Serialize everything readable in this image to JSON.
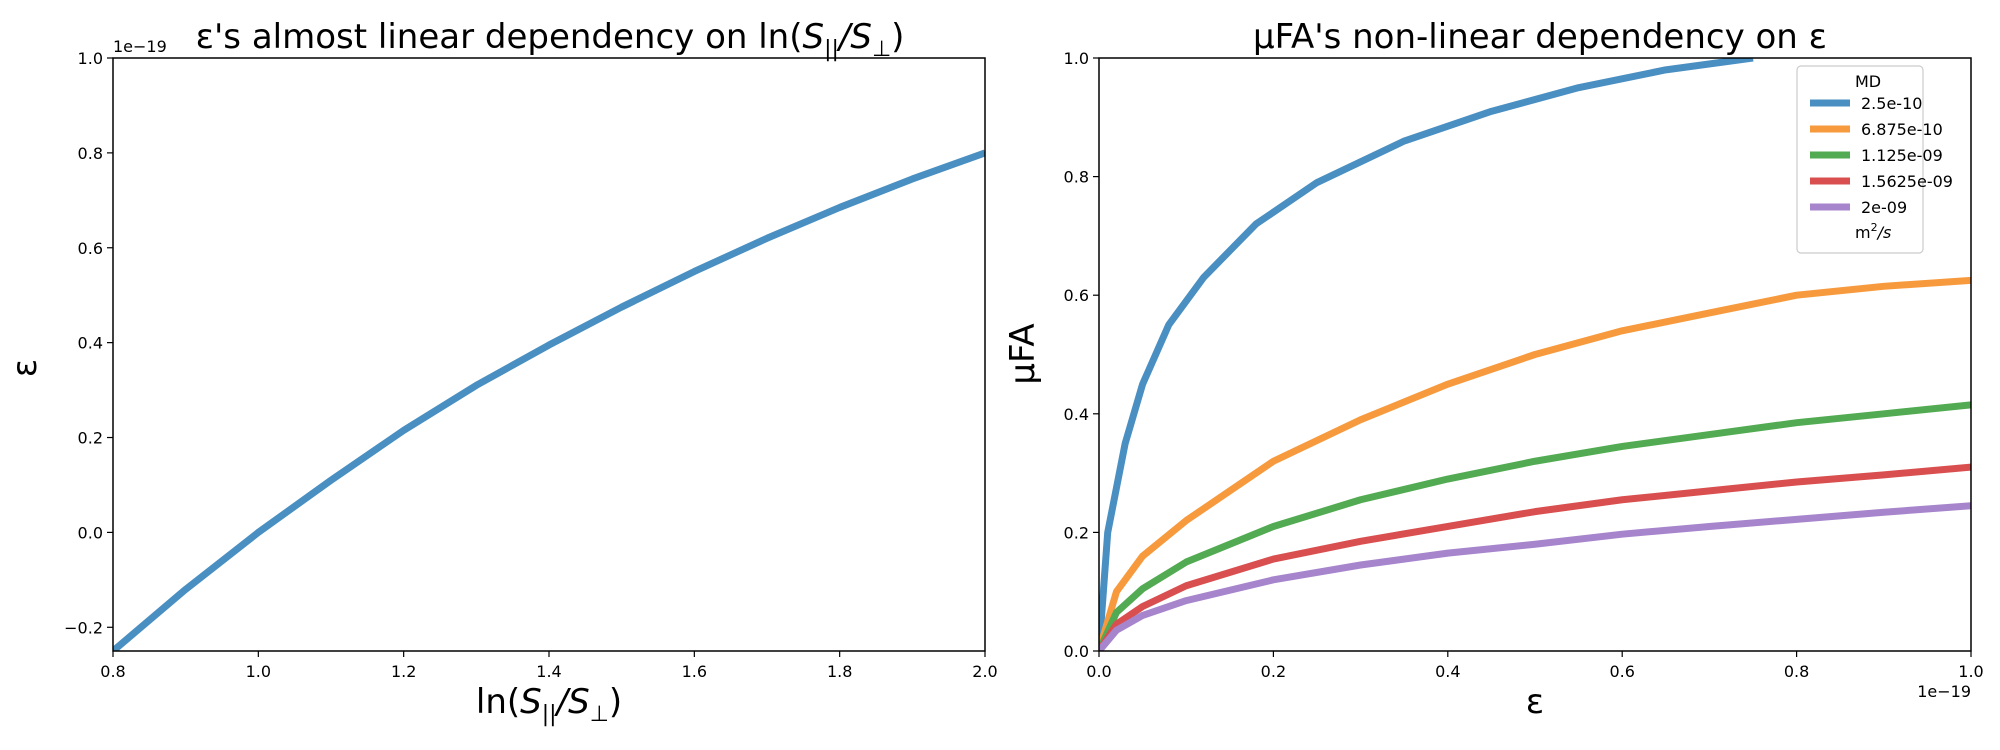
{
  "chart_data": [
    {
      "type": "line",
      "title": "ε's almost linear dependency on ln(S||/S⊥)",
      "title_parts": {
        "prefix": "ε's almost linear dependency on ln(",
        "s": "S",
        "sub_par": "||",
        "slash": "/",
        "sub_perp": "⊥",
        "suffix": ")"
      },
      "xlabel_parts": {
        "prefix": "ln(",
        "s": "S",
        "sub_par": "||",
        "slash": "/",
        "sub_perp": "⊥",
        "suffix": ")"
      },
      "ylabel": "ε",
      "y_offset_text": "1e−19",
      "xlim": [
        0.8,
        2.0
      ],
      "ylim": [
        -0.25,
        1.0
      ],
      "x_ticks": [
        0.8,
        1.0,
        1.2,
        1.4,
        1.6,
        1.8,
        2.0
      ],
      "x_tick_labels": [
        "0.8",
        "1.0",
        "1.2",
        "1.4",
        "1.6",
        "1.8",
        "2.0"
      ],
      "y_ticks": [
        -0.2,
        0.0,
        0.2,
        0.4,
        0.6,
        0.8,
        1.0
      ],
      "y_tick_labels": [
        "−0.2",
        "0.0",
        "0.2",
        "0.4",
        "0.6",
        "0.8",
        "1.0"
      ],
      "grid": false,
      "series": [
        {
          "color": "#4a8fc2",
          "x": [
            0.8,
            0.9,
            1.0,
            1.1,
            1.2,
            1.3,
            1.4,
            1.5,
            1.6,
            1.7,
            1.8,
            1.9,
            2.0
          ],
          "y": [
            -0.25,
            -0.12,
            0.0,
            0.11,
            0.215,
            0.31,
            0.395,
            0.475,
            0.55,
            0.62,
            0.685,
            0.745,
            0.8
          ]
        }
      ]
    },
    {
      "type": "line",
      "title": "μFA's non-linear dependency on ε",
      "xlabel": "ε",
      "ylabel": "μFA",
      "x_offset_text": "1e−19",
      "xlim": [
        0.0,
        1.0
      ],
      "ylim": [
        0.0,
        1.0
      ],
      "x_ticks": [
        0.0,
        0.2,
        0.4,
        0.6,
        0.8,
        1.0
      ],
      "x_tick_labels": [
        "0.0",
        "0.2",
        "0.4",
        "0.6",
        "0.8",
        "1.0"
      ],
      "y_ticks": [
        0.0,
        0.2,
        0.4,
        0.6,
        0.8,
        1.0
      ],
      "y_tick_labels": [
        "0.0",
        "0.2",
        "0.4",
        "0.6",
        "0.8",
        "1.0"
      ],
      "grid": false,
      "legend": {
        "placement": "top-right",
        "title": "MD",
        "footer": "m²/s",
        "footer_parts": {
          "base": "m",
          "sup": "2",
          "rest": "/s"
        }
      },
      "series": [
        {
          "name": "2.5e-10",
          "color": "#4a8fc2",
          "x": [
            0,
            0.01,
            0.03,
            0.05,
            0.08,
            0.12,
            0.18,
            0.25,
            0.35,
            0.45,
            0.55,
            0.65,
            0.75
          ],
          "y": [
            0,
            0.2,
            0.35,
            0.45,
            0.55,
            0.63,
            0.72,
            0.79,
            0.86,
            0.91,
            0.95,
            0.98,
            1.0
          ]
        },
        {
          "name": "6.875e-10",
          "color": "#f79a3e",
          "x": [
            0,
            0.02,
            0.05,
            0.1,
            0.2,
            0.3,
            0.4,
            0.5,
            0.6,
            0.7,
            0.8,
            0.9,
            1.0
          ],
          "y": [
            0,
            0.1,
            0.16,
            0.22,
            0.32,
            0.39,
            0.45,
            0.5,
            0.54,
            0.57,
            0.6,
            0.615,
            0.625
          ]
        },
        {
          "name": "1.125e-09",
          "color": "#52ab52",
          "x": [
            0,
            0.02,
            0.05,
            0.1,
            0.2,
            0.3,
            0.4,
            0.5,
            0.6,
            0.7,
            0.8,
            0.9,
            1.0
          ],
          "y": [
            0,
            0.065,
            0.105,
            0.15,
            0.21,
            0.255,
            0.29,
            0.32,
            0.345,
            0.365,
            0.385,
            0.4,
            0.415
          ]
        },
        {
          "name": "1.5625e-09",
          "color": "#d94f4f",
          "x": [
            0,
            0.02,
            0.05,
            0.1,
            0.2,
            0.3,
            0.4,
            0.5,
            0.6,
            0.7,
            0.8,
            0.9,
            1.0
          ],
          "y": [
            0,
            0.045,
            0.075,
            0.11,
            0.155,
            0.185,
            0.21,
            0.235,
            0.255,
            0.27,
            0.285,
            0.297,
            0.31
          ]
        },
        {
          "name": "2e-09",
          "color": "#a785cc",
          "x": [
            0,
            0.02,
            0.05,
            0.1,
            0.2,
            0.3,
            0.4,
            0.5,
            0.6,
            0.7,
            0.8,
            0.9,
            1.0
          ],
          "y": [
            0,
            0.035,
            0.06,
            0.085,
            0.12,
            0.145,
            0.165,
            0.18,
            0.197,
            0.21,
            0.222,
            0.234,
            0.245
          ]
        }
      ]
    }
  ]
}
